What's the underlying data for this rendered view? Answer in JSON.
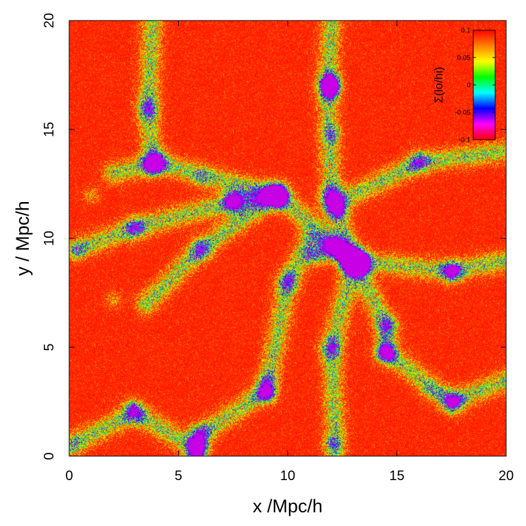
{
  "chart_data": {
    "type": "heatmap",
    "title": "",
    "xlabel": "x /Mpc/h",
    "ylabel": "y / Mpc/h",
    "xlim": [
      0,
      20
    ],
    "ylim": [
      0,
      20
    ],
    "x_ticks": [
      {
        "value": 0,
        "label": "0"
      },
      {
        "value": 5,
        "label": "5"
      },
      {
        "value": 10,
        "label": "10"
      },
      {
        "value": 15,
        "label": "15"
      },
      {
        "value": 20,
        "label": "20"
      }
    ],
    "y_ticks": [
      {
        "value": 0,
        "label": "0"
      },
      {
        "value": 5,
        "label": "5"
      },
      {
        "value": 10,
        "label": "10"
      },
      {
        "value": 15,
        "label": "15"
      },
      {
        "value": 20,
        "label": "20"
      }
    ],
    "colorbar": {
      "label": "Σ(lo/hi)",
      "range": [
        -0.1,
        0.1
      ],
      "ticks": [
        {
          "value": 0.1,
          "label": "0.1"
        },
        {
          "value": 0.05,
          "label": "0.05"
        },
        {
          "value": 0,
          "label": "0"
        },
        {
          "value": -0.05,
          "label": "-0.05"
        },
        {
          "value": -0.1,
          "label": "-0.1"
        }
      ],
      "colormap": [
        "#ff0000",
        "#ff00ff",
        "#0000ff",
        "#00ffff",
        "#00ff00",
        "#ffff00",
        "#ff8000",
        "#ff0000"
      ]
    },
    "background_color": "#ff2a00",
    "filaments": [
      [
        [
          12.0,
          20.0
        ],
        [
          11.8,
          17.0
        ],
        [
          12.0,
          12.0
        ],
        [
          13.0,
          9.0
        ]
      ],
      [
        [
          13.0,
          9.0
        ],
        [
          14.5,
          6.0
        ],
        [
          14.5,
          4.8
        ]
      ],
      [
        [
          13.0,
          9.0
        ],
        [
          17.5,
          8.5
        ],
        [
          20.0,
          9.0
        ]
      ],
      [
        [
          13.0,
          9.0
        ],
        [
          9.5,
          12.0
        ],
        [
          4.0,
          13.5
        ],
        [
          2.0,
          13.0
        ]
      ],
      [
        [
          9.5,
          12.0
        ],
        [
          7.5,
          11.7
        ],
        [
          3.0,
          10.5
        ],
        [
          0.3,
          9.5
        ]
      ],
      [
        [
          13.0,
          9.0
        ],
        [
          12.0,
          5.0
        ],
        [
          12.2,
          0.0
        ]
      ],
      [
        [
          14.5,
          4.8
        ],
        [
          17.5,
          2.5
        ],
        [
          20.0,
          3.5
        ]
      ],
      [
        [
          3.8,
          20.0
        ],
        [
          3.6,
          16.0
        ],
        [
          3.8,
          13.5
        ]
      ],
      [
        [
          12.0,
          11.5
        ],
        [
          16.0,
          13.5
        ],
        [
          20.0,
          14.0
        ]
      ],
      [
        [
          9.0,
          3.0
        ],
        [
          6.0,
          1.0
        ],
        [
          5.8,
          0.0
        ]
      ],
      [
        [
          9.0,
          3.0
        ],
        [
          10.0,
          8.0
        ],
        [
          11.0,
          10.0
        ]
      ],
      [
        [
          0.0,
          0.5
        ],
        [
          3.0,
          2.0
        ],
        [
          5.8,
          0.3
        ]
      ],
      [
        [
          3.5,
          7.0
        ],
        [
          6.0,
          9.5
        ],
        [
          9.5,
          12.0
        ]
      ],
      [
        [
          11.5,
          9.3
        ],
        [
          12.0,
          9.6
        ],
        [
          13.0,
          9.0
        ]
      ]
    ],
    "halos": [
      {
        "x": 13.4,
        "y": 8.8,
        "strength": 1.0
      },
      {
        "x": 12.0,
        "y": 17.2,
        "strength": 0.9
      },
      {
        "x": 12.0,
        "y": 16.8,
        "strength": 0.8
      },
      {
        "x": 12.3,
        "y": 11.3,
        "strength": 0.6
      },
      {
        "x": 9.4,
        "y": 12.0,
        "strength": 0.7
      },
      {
        "x": 12.0,
        "y": 14.8,
        "strength": 0.5
      },
      {
        "x": 5.8,
        "y": 0.4,
        "strength": 0.8
      },
      {
        "x": 14.5,
        "y": 4.7,
        "strength": 0.6
      },
      {
        "x": 3.8,
        "y": 13.3,
        "strength": 0.5
      },
      {
        "x": 7.5,
        "y": 11.7,
        "strength": 0.5
      },
      {
        "x": 9.0,
        "y": 2.9,
        "strength": 0.5
      },
      {
        "x": 2.0,
        "y": 7.2,
        "strength": 0.4
      },
      {
        "x": 0.4,
        "y": 9.5,
        "strength": 0.4
      },
      {
        "x": 17.5,
        "y": 8.5,
        "strength": 0.4
      },
      {
        "x": 17.6,
        "y": 2.5,
        "strength": 0.4
      },
      {
        "x": 12.0,
        "y": 0.6,
        "strength": 0.5
      },
      {
        "x": 2.8,
        "y": 2.3,
        "strength": 0.3
      },
      {
        "x": 1.0,
        "y": 12.0,
        "strength": 0.4
      },
      {
        "x": 6.0,
        "y": 12.8,
        "strength": 0.4
      },
      {
        "x": 11.0,
        "y": 9.2,
        "strength": 0.4
      },
      {
        "x": 9.0,
        "y": 3.6,
        "strength": 0.3
      },
      {
        "x": 16.5,
        "y": 3.0,
        "strength": 0.3
      },
      {
        "x": 0.2,
        "y": 0.5,
        "strength": 0.3
      }
    ]
  }
}
